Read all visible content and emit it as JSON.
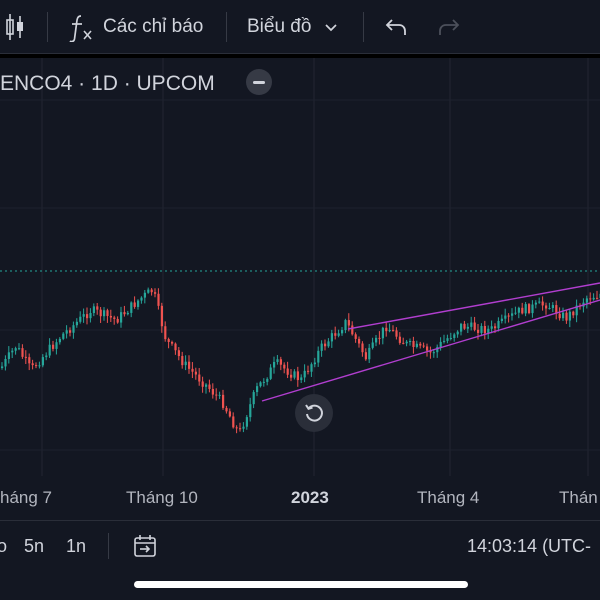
{
  "toolbar": {
    "indicators_label": "Các chỉ báo",
    "chart_type_label": "Biểu đồ"
  },
  "legend": {
    "symbol_line": "ENCO4 · 1D · UPCOM"
  },
  "x_axis": {
    "labels": [
      "háng 7",
      "Tháng 10",
      "2023",
      "Tháng 4",
      "Thán"
    ]
  },
  "bottom_bar": {
    "range_1": "o",
    "range_2": "5n",
    "range_3": "1n",
    "clock": "14:03:14 (UTC-"
  },
  "colors": {
    "background": "#131722",
    "up_candle": "#26a69a",
    "down_candle": "#ef5350",
    "trend_line": "#b13ecf",
    "price_line": "#26a69a"
  },
  "chart_data": {
    "type": "candlestick",
    "series_description": "daily OHLC",
    "annotations": [
      "rising wedge trendlines"
    ]
  }
}
